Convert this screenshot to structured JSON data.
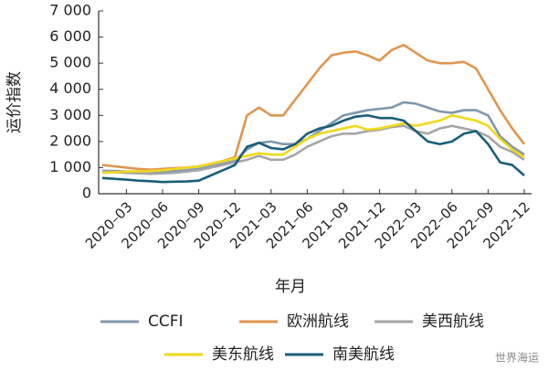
{
  "chart_data": {
    "type": "line",
    "y_label": "运价指数",
    "x_label": "年月",
    "categories": [
      null,
      null,
      "2020–03",
      null,
      null,
      "2020–06",
      null,
      null,
      "2020–09",
      null,
      null,
      "2020–12",
      null,
      null,
      "2021–03",
      null,
      null,
      "2021–06",
      null,
      null,
      "2021–09",
      null,
      null,
      "2021–12",
      null,
      null,
      "2022–03",
      null,
      null,
      "2022–06",
      null,
      null,
      "2022–09",
      null,
      null,
      "2022–12"
    ],
    "ylim": [
      0,
      7000
    ],
    "yticks": [
      0,
      {
        "value": 1000,
        "label": "1 000"
      },
      {
        "value": 2000,
        "label": "2 000"
      },
      {
        "value": 3000,
        "label": "3 000"
      },
      {
        "value": 4000,
        "label": "4 000"
      },
      {
        "value": 5000,
        "label": "5 000"
      },
      {
        "value": 6000,
        "label": "6 000"
      },
      {
        "value": 7000,
        "label": "7 000"
      }
    ],
    "grid": false,
    "series": [
      {
        "name": "CCFI",
        "color": "#7f97ae",
        "values": [
          880,
          870,
          850,
          840,
          830,
          850,
          870,
          900,
          950,
          1050,
          1150,
          1250,
          1700,
          1950,
          2000,
          1900,
          1900,
          2100,
          2400,
          2700,
          3000,
          3100,
          3200,
          3250,
          3300,
          3500,
          3450,
          3300,
          3150,
          3100,
          3200,
          3200,
          3000,
          2200,
          1800,
          1500
        ]
      },
      {
        "name": "欧洲航线",
        "color": "#e0954f",
        "values": [
          1100,
          1050,
          1000,
          950,
          920,
          950,
          980,
          1000,
          1050,
          1150,
          1250,
          1400,
          3000,
          3300,
          3000,
          3000,
          3600,
          4200,
          4800,
          5300,
          5400,
          5450,
          5300,
          5100,
          5500,
          5700,
          5400,
          5100,
          5000,
          5000,
          5050,
          4800,
          4000,
          3200,
          2500,
          1900
        ]
      },
      {
        "name": "美西航线",
        "color": "#a6a6a6",
        "values": [
          850,
          830,
          800,
          780,
          760,
          780,
          800,
          850,
          900,
          1000,
          1100,
          1200,
          1300,
          1450,
          1300,
          1300,
          1500,
          1800,
          2000,
          2200,
          2300,
          2300,
          2400,
          2450,
          2550,
          2600,
          2400,
          2300,
          2500,
          2600,
          2500,
          2400,
          2200,
          1800,
          1600,
          1300
        ]
      },
      {
        "name": "美东航线",
        "color": "#f2d81a",
        "values": [
          800,
          820,
          850,
          860,
          870,
          900,
          950,
          1000,
          1050,
          1150,
          1250,
          1350,
          1450,
          1550,
          1500,
          1500,
          1800,
          2100,
          2300,
          2400,
          2500,
          2600,
          2450,
          2500,
          2600,
          2700,
          2600,
          2700,
          2800,
          3000,
          2900,
          2800,
          2600,
          2100,
          1700,
          1400
        ]
      },
      {
        "name": "南美航线",
        "color": "#1a5e7a",
        "values": [
          600,
          570,
          540,
          500,
          480,
          450,
          460,
          470,
          500,
          700,
          900,
          1100,
          1800,
          1950,
          1750,
          1700,
          1900,
          2300,
          2500,
          2600,
          2800,
          2950,
          3000,
          2900,
          2900,
          2800,
          2400,
          2000,
          1900,
          2000,
          2300,
          2400,
          1900,
          1200,
          1100,
          700
        ]
      }
    ],
    "legend": "bottom",
    "watermark": "世界海运"
  }
}
